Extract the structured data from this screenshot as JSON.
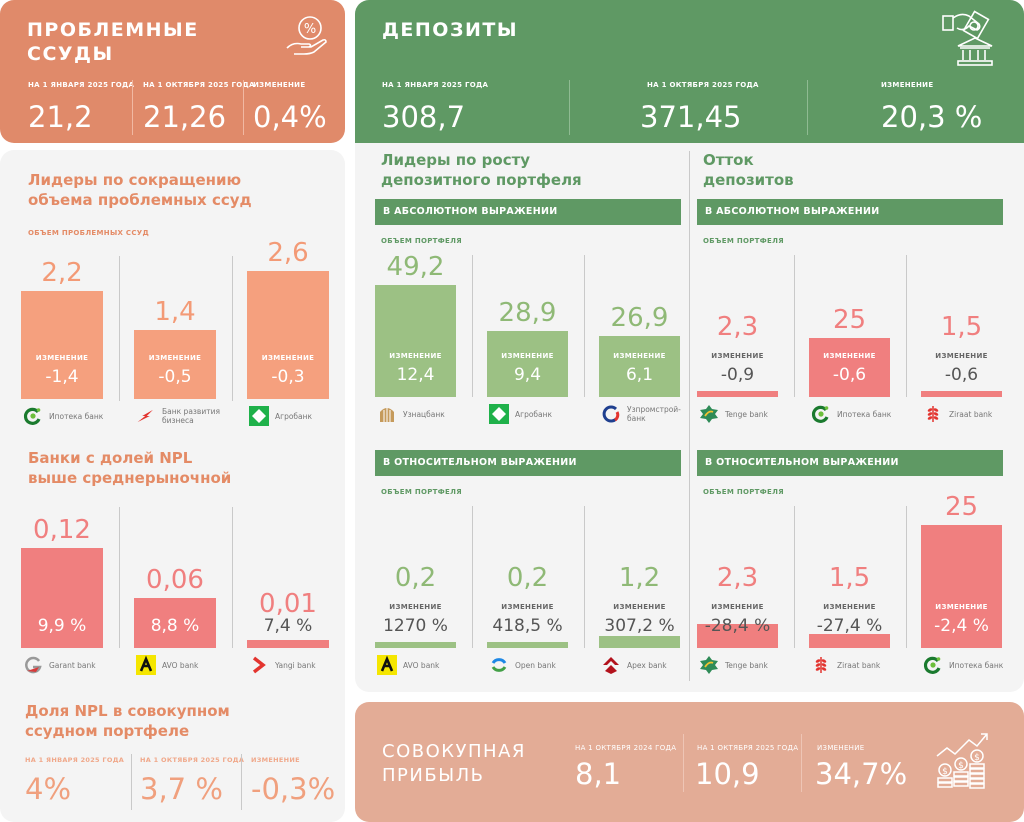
{
  "npl_header": {
    "title_line1": "ПРОБЛЕМНЫЕ",
    "title_line2": "ССУДЫ",
    "icon": "percent-hand-icon",
    "columns": [
      {
        "label": "НА 1 ЯНВАРЯ 2025 ГОДА",
        "value": "21,2"
      },
      {
        "label": "НА 1 ОКТЯБРЯ 2025 ГОДА",
        "value": "21,26"
      },
      {
        "label": "ИЗМЕНЕНИЕ",
        "value": "0,4%"
      }
    ]
  },
  "deposits_header": {
    "title": "ДЕПОЗИТЫ",
    "icon": "money-bank-icon",
    "columns": [
      {
        "label": "НА 1 ЯНВАРЯ 2025 ГОДА",
        "value": "308,7"
      },
      {
        "label": "НА 1 ОКТЯБРЯ 2025 ГОДА",
        "value": "371,45"
      },
      {
        "label": "ИЗМЕНЕНИЕ",
        "value": "20,3 %"
      }
    ]
  },
  "npl_leaders": {
    "title_line1": "Лидеры по сокращению",
    "title_line2": "объема проблемных ссуд",
    "subtitle": "ОБЪЕМ ПРОБЛЕМНЫХ ССУД",
    "change_label": "ИЗМЕНЕНИЕ",
    "items": [
      {
        "bank": "Ипотека банк",
        "volume": "2,2",
        "volume_num": 2.2,
        "change": "-1,4"
      },
      {
        "bank": "Банк развития бизнеса",
        "volume": "1,4",
        "volume_num": 1.4,
        "change": "-0,5"
      },
      {
        "bank": "Агробанк",
        "volume": "2,6",
        "volume_num": 2.6,
        "change": "-0,3"
      }
    ]
  },
  "npl_above_avg": {
    "title_line1": "Банки с долей NPL",
    "title_line2": "выше среднерыночной",
    "items": [
      {
        "bank": "Garant bank",
        "volume": "0,12",
        "volume_num": 0.12,
        "share": "9,9 %"
      },
      {
        "bank": "AVO bank",
        "volume": "0,06",
        "volume_num": 0.06,
        "share": "8,8 %"
      },
      {
        "bank": "Yangi bank",
        "volume": "0,01",
        "volume_num": 0.01,
        "share": "7,4 %"
      }
    ]
  },
  "npl_share": {
    "title_line1": "Доля NPL в совокупном",
    "title_line2": "ссудном портфеле",
    "columns": [
      {
        "label": "НА 1 ЯНВАРЯ 2025 ГОДА",
        "value": "4%"
      },
      {
        "label": "НА 1 ОКТЯБРЯ 2025 ГОДА",
        "value": "3,7 %"
      },
      {
        "label": "ИЗМЕНЕНИЕ",
        "value": "-0,3%"
      }
    ]
  },
  "deposit_leaders": {
    "title_line1": "Лидеры по росту",
    "title_line2": "депозитного портфеля",
    "abs_band": "В АБСОЛЮТНОМ ВЫРАЖЕНИИ",
    "rel_band": "В ОТНОСИТЕЛЬНОМ ВЫРАЖЕНИИ",
    "subtitle": "ОБЪЕМ ПОРТФЕЛЯ",
    "change_label": "ИЗМЕНЕНИЕ",
    "absolute": [
      {
        "bank": "Узнацбанк",
        "volume": "49,2",
        "volume_num": 49.2,
        "change": "12,4"
      },
      {
        "bank": "Агробанк",
        "volume": "28,9",
        "volume_num": 28.9,
        "change": "9,4"
      },
      {
        "bank": "Узпромстрой-банк",
        "volume": "26,9",
        "volume_num": 26.9,
        "change": "6,1"
      }
    ],
    "relative": [
      {
        "bank": "AVO bank",
        "volume": "0,2",
        "volume_num": 0.2,
        "change": "1270 %"
      },
      {
        "bank": "Open bank",
        "volume": "0,2",
        "volume_num": 0.2,
        "change": "418,5 %"
      },
      {
        "bank": "Apex bank",
        "volume": "1,2",
        "volume_num": 1.2,
        "change": "307,2 %"
      }
    ]
  },
  "deposit_outflow": {
    "title_line1": "Отток",
    "title_line2": "депозитов",
    "abs_band": "В АБСОЛЮТНОМ ВЫРАЖЕНИИ",
    "rel_band": "В ОТНОСИТЕЛЬНОМ ВЫРАЖЕНИИ",
    "subtitle": "ОБЪЕМ ПОРТФЕЛЯ",
    "change_label": "ИЗМЕНЕНИЕ",
    "absolute": [
      {
        "bank": "Tenge bank",
        "volume": "2,3",
        "volume_num": 2.3,
        "change": "-0,9"
      },
      {
        "bank": "Ипотека банк",
        "volume": "25",
        "volume_num": 25,
        "change": "-0,6"
      },
      {
        "bank": "Ziraat bank",
        "volume": "1,5",
        "volume_num": 1.5,
        "change": "-0,6"
      }
    ],
    "relative": [
      {
        "bank": "Tenge bank",
        "volume": "2,3",
        "volume_num": 2.3,
        "change": "-28,4 %"
      },
      {
        "bank": "Ziraat bank",
        "volume": "1,5",
        "volume_num": 1.5,
        "change": "-27,4 %"
      },
      {
        "bank": "Ипотека банк",
        "volume": "25",
        "volume_num": 25,
        "change": "-2,4 %"
      }
    ]
  },
  "profit": {
    "title_line1": "СОВОКУПНАЯ",
    "title_line2": "ПРИБЫЛЬ",
    "icon": "coins-growth-icon",
    "columns": [
      {
        "label": "НА 1 ОКТЯБРЯ 2024 ГОДА",
        "value": "8,1"
      },
      {
        "label": "НА 1 ОКТЯБРЯ 2025 ГОДА",
        "value": "10,9"
      },
      {
        "label": "ИЗМЕНЕНИЕ",
        "value": "34,7%"
      }
    ]
  },
  "colors": {
    "orange_header": "#e08a6a",
    "orange_bar": "#f5a07e",
    "green_header": "#5f9964",
    "green_bar": "#9cc184",
    "red_bar": "#f07f7f",
    "profit_bg": "#e3ac96",
    "panel_bg": "#f4f4f4"
  }
}
